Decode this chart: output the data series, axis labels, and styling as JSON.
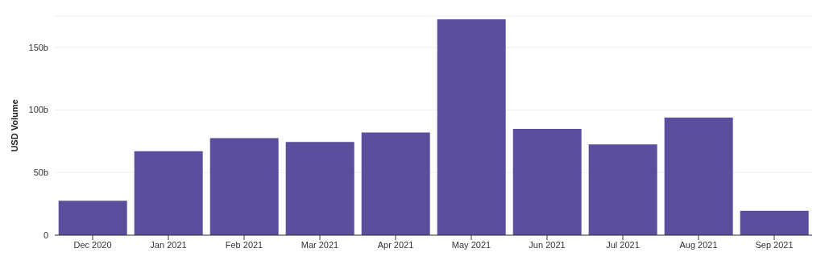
{
  "chart_data": {
    "type": "bar",
    "ylabel": "USD Volume",
    "categories": [
      "Dec 2020",
      "Jan 2021",
      "Feb 2021",
      "Mar 2021",
      "Apr 2021",
      "May 2021",
      "Jun 2021",
      "Jul 2021",
      "Aug 2021",
      "Sep 2021"
    ],
    "values": [
      27.5,
      67,
      77.5,
      74.5,
      82,
      172.5,
      85,
      72.5,
      94,
      19.5
    ],
    "color": "#5b4e9c",
    "ylim": [
      0,
      175
    ],
    "yticks": [
      0,
      {
        "value": 50,
        "label": "50b"
      },
      {
        "value": 100,
        "label": "100b"
      },
      {
        "value": 150,
        "label": "150b"
      }
    ],
    "grid": "y"
  }
}
